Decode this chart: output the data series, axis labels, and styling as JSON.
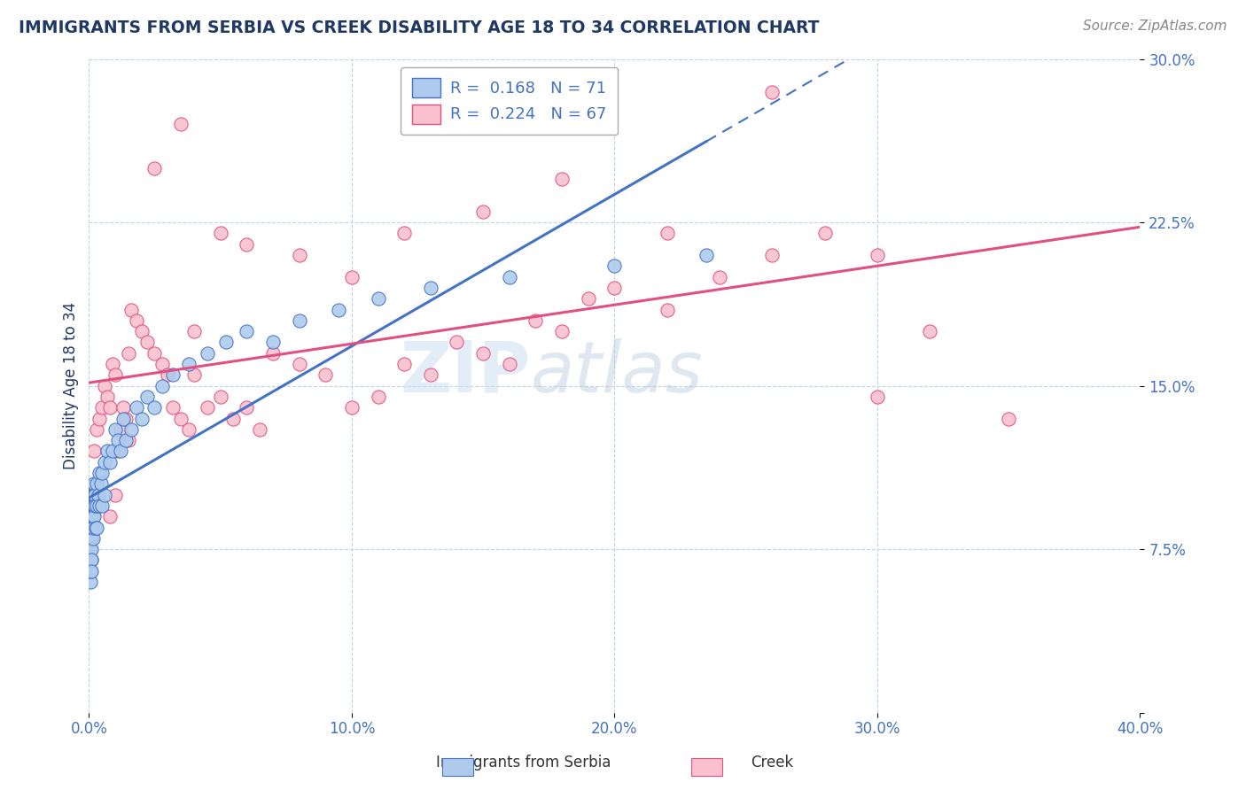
{
  "title": "IMMIGRANTS FROM SERBIA VS CREEK DISABILITY AGE 18 TO 34 CORRELATION CHART",
  "source_text": "Source: ZipAtlas.com",
  "ylabel": "Disability Age 18 to 34",
  "xlim": [
    0.0,
    0.4
  ],
  "ylim": [
    0.0,
    0.3
  ],
  "xticks": [
    0.0,
    0.1,
    0.2,
    0.3,
    0.4
  ],
  "xticklabels": [
    "0.0%",
    "10.0%",
    "20.0%",
    "30.0%",
    "40.0%"
  ],
  "yticks": [
    0.0,
    0.075,
    0.15,
    0.225,
    0.3
  ],
  "yticklabels": [
    "",
    "7.5%",
    "15.0%",
    "22.5%",
    "30.0%"
  ],
  "legend_r1": "R =  0.168",
  "legend_n1": "N = 71",
  "legend_r2": "R =  0.224",
  "legend_n2": "N = 67",
  "series1_color": "#aecbee",
  "series2_color": "#f9c0d0",
  "series1_edge": "#4472c4",
  "series2_edge": "#e05080",
  "trend1_color": "#4472c4",
  "trend2_color": "#e05080",
  "watermark": "ZIPatlas",
  "title_color": "#1f3864",
  "axis_color": "#4472c4",
  "grid_color": "#c0d4e8",
  "serbia_x": [
    0.0005,
    0.0005,
    0.0005,
    0.0006,
    0.0006,
    0.0007,
    0.0007,
    0.0008,
    0.0008,
    0.0009,
    0.001,
    0.001,
    0.001,
    0.001,
    0.001,
    0.001,
    0.001,
    0.001,
    0.0012,
    0.0012,
    0.0013,
    0.0014,
    0.0015,
    0.0015,
    0.0016,
    0.0017,
    0.0018,
    0.002,
    0.002,
    0.002,
    0.0022,
    0.0023,
    0.0025,
    0.003,
    0.003,
    0.003,
    0.0035,
    0.004,
    0.004,
    0.0045,
    0.005,
    0.005,
    0.006,
    0.006,
    0.007,
    0.008,
    0.009,
    0.01,
    0.011,
    0.012,
    0.013,
    0.014,
    0.016,
    0.018,
    0.02,
    0.022,
    0.025,
    0.028,
    0.032,
    0.038,
    0.045,
    0.052,
    0.06,
    0.07,
    0.08,
    0.095,
    0.11,
    0.13,
    0.16,
    0.2,
    0.235
  ],
  "serbia_y": [
    0.09,
    0.07,
    0.06,
    0.085,
    0.075,
    0.08,
    0.065,
    0.09,
    0.07,
    0.08,
    0.1,
    0.095,
    0.09,
    0.085,
    0.08,
    0.075,
    0.07,
    0.065,
    0.095,
    0.085,
    0.09,
    0.08,
    0.1,
    0.09,
    0.085,
    0.095,
    0.1,
    0.105,
    0.095,
    0.09,
    0.1,
    0.095,
    0.085,
    0.105,
    0.095,
    0.085,
    0.1,
    0.11,
    0.095,
    0.105,
    0.11,
    0.095,
    0.115,
    0.1,
    0.12,
    0.115,
    0.12,
    0.13,
    0.125,
    0.12,
    0.135,
    0.125,
    0.13,
    0.14,
    0.135,
    0.145,
    0.14,
    0.15,
    0.155,
    0.16,
    0.165,
    0.17,
    0.175,
    0.17,
    0.18,
    0.185,
    0.19,
    0.195,
    0.2,
    0.205,
    0.21
  ],
  "creek_x": [
    0.002,
    0.003,
    0.004,
    0.005,
    0.006,
    0.007,
    0.008,
    0.009,
    0.01,
    0.011,
    0.012,
    0.013,
    0.014,
    0.015,
    0.016,
    0.018,
    0.02,
    0.022,
    0.025,
    0.028,
    0.03,
    0.032,
    0.035,
    0.038,
    0.04,
    0.045,
    0.05,
    0.055,
    0.06,
    0.065,
    0.07,
    0.08,
    0.09,
    0.1,
    0.11,
    0.12,
    0.13,
    0.14,
    0.15,
    0.16,
    0.17,
    0.18,
    0.19,
    0.2,
    0.22,
    0.24,
    0.26,
    0.28,
    0.3,
    0.32,
    0.05,
    0.06,
    0.08,
    0.1,
    0.12,
    0.15,
    0.18,
    0.22,
    0.26,
    0.3,
    0.04,
    0.035,
    0.025,
    0.015,
    0.01,
    0.008,
    0.35
  ],
  "creek_y": [
    0.12,
    0.13,
    0.135,
    0.14,
    0.15,
    0.145,
    0.14,
    0.16,
    0.155,
    0.12,
    0.13,
    0.14,
    0.135,
    0.125,
    0.185,
    0.18,
    0.175,
    0.17,
    0.165,
    0.16,
    0.155,
    0.14,
    0.135,
    0.13,
    0.155,
    0.14,
    0.145,
    0.135,
    0.14,
    0.13,
    0.165,
    0.16,
    0.155,
    0.14,
    0.145,
    0.16,
    0.155,
    0.17,
    0.165,
    0.16,
    0.18,
    0.175,
    0.19,
    0.195,
    0.185,
    0.2,
    0.21,
    0.22,
    0.145,
    0.175,
    0.22,
    0.215,
    0.21,
    0.2,
    0.22,
    0.23,
    0.245,
    0.22,
    0.285,
    0.21,
    0.175,
    0.27,
    0.25,
    0.165,
    0.1,
    0.09,
    0.135
  ]
}
